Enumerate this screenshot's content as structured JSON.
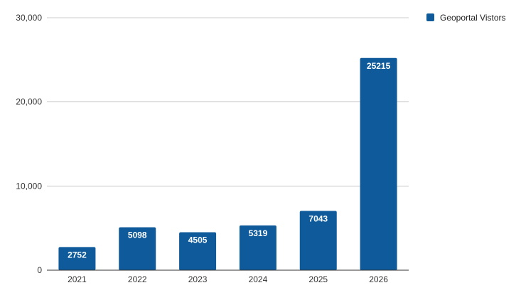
{
  "chart_data": {
    "type": "bar",
    "categories": [
      "2021",
      "2022",
      "2023",
      "2024",
      "2025",
      "2026"
    ],
    "series": [
      {
        "name": "Geoportal Vistors",
        "values": [
          2752,
          5098,
          4505,
          5319,
          7043,
          25215
        ]
      }
    ],
    "ylim": [
      0,
      30000
    ],
    "yticks": [
      "0",
      "10,000",
      "20,000",
      "30,000"
    ],
    "ytick_values": [
      0,
      10000,
      20000,
      30000
    ],
    "grid": true,
    "legend_position": "top-right",
    "data_labels": [
      "2752",
      "5098",
      "4505",
      "5319",
      "7043",
      "25215"
    ],
    "colors": {
      "bar": "#0f5a9a",
      "grid": "#cccccc",
      "axis": "#333333"
    }
  }
}
